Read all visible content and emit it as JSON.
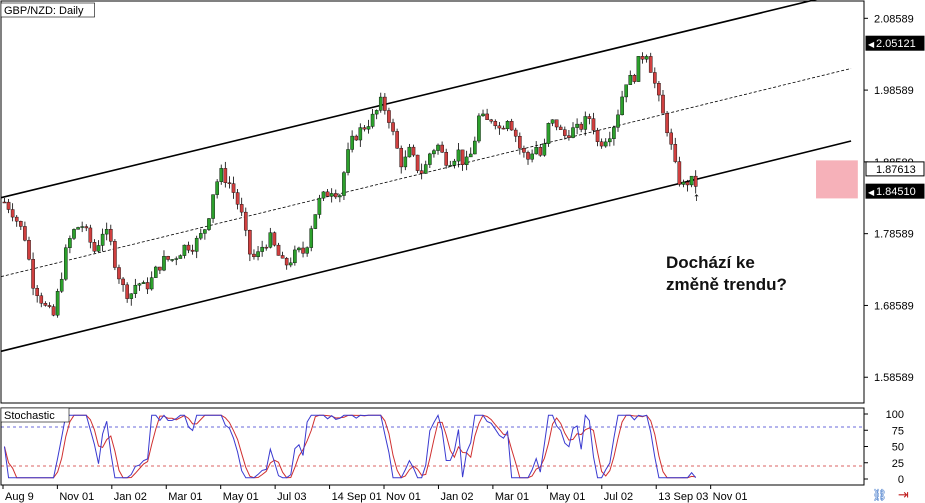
{
  "window": {
    "chart_label": "GBP/NZD: Daily",
    "stoch_label": "Stochastic"
  },
  "annotation": "Dochází ke\nzměně trendu?",
  "chart_data": [
    {
      "type": "candlestick",
      "title": "GBP/NZD: Daily",
      "ylim": [
        1.55,
        2.11
      ],
      "y_ticks": [
        "2.08589",
        "1.98589",
        "1.88589",
        "1.78589",
        "1.68589",
        "1.58589"
      ],
      "price_tags": [
        {
          "value": 2.05121,
          "label": "2.05121",
          "style": "dark"
        },
        {
          "value": 1.87613,
          "label": "1.87613",
          "style": "light"
        },
        {
          "value": 1.8451,
          "label": "1.84510",
          "style": "dark"
        }
      ],
      "x_ticks": [
        "Aug 9",
        "Nov 01",
        "Jan 02",
        "Mar 01",
        "May 01",
        "Jul 03",
        "14 Sep 01",
        "Nov 01",
        "Jan 02",
        "Mar 01",
        "May 01",
        "Jul 02",
        "13 Sep 03",
        "Nov 01"
      ],
      "close_series": [
        1.83,
        1.82,
        1.8,
        1.78,
        1.72,
        1.7,
        1.68,
        1.67,
        1.72,
        1.77,
        1.79,
        1.8,
        1.78,
        1.76,
        1.79,
        1.78,
        1.74,
        1.71,
        1.7,
        1.72,
        1.71,
        1.72,
        1.74,
        1.75,
        1.75,
        1.76,
        1.77,
        1.77,
        1.78,
        1.8,
        1.85,
        1.87,
        1.86,
        1.84,
        1.81,
        1.76,
        1.75,
        1.77,
        1.78,
        1.76,
        1.74,
        1.75,
        1.76,
        1.76,
        1.8,
        1.83,
        1.84,
        1.85,
        1.84,
        1.89,
        1.92,
        1.93,
        1.94,
        1.95,
        1.97,
        1.95,
        1.91,
        1.88,
        1.9,
        1.88,
        1.87,
        1.9,
        1.91,
        1.89,
        1.89,
        1.9,
        1.88,
        1.9,
        1.95,
        1.94,
        1.95,
        1.93,
        1.95,
        1.93,
        1.9,
        1.89,
        1.91,
        1.89,
        1.94,
        1.94,
        1.92,
        1.93,
        1.93,
        1.94,
        1.95,
        1.91,
        1.92,
        1.93,
        1.96,
        2.0,
        2.0,
        2.03,
        2.04,
        2.0,
        1.96,
        1.93,
        1.88,
        1.85,
        1.86,
        1.855
      ],
      "channel": {
        "upper": [
          [
            1.836,
            2.0
          ],
          [
            2.124,
            2.0
          ]
        ],
        "middle": [
          [
            1.726,
            2.0
          ],
          [
            2.016,
            2.0
          ]
        ],
        "lower": [
          [
            1.622,
            2.0
          ],
          [
            1.915,
            2.0
          ]
        ]
      },
      "highlight": {
        "x_range": [
          0.956,
          0.972
        ],
        "y_range": [
          1.835,
          1.888
        ]
      },
      "arrow_marker": 1.84
    },
    {
      "type": "line",
      "title": "Stochastic",
      "ylim": [
        0,
        100
      ],
      "y_ticks": [
        "100",
        "75",
        "50",
        "25",
        "0"
      ],
      "levels": [
        80,
        20
      ],
      "colors": {
        "main": "#3a3ad0",
        "signal": "#d03030",
        "level_top": "#3a3ad0",
        "level_bottom": "#d03030"
      }
    }
  ],
  "colors": {
    "up": "#2ca02c",
    "down": "#d04040",
    "wick": "#000000",
    "highlight": "#f4a3ad",
    "axis": "#000000",
    "bg": "#ffffff"
  }
}
